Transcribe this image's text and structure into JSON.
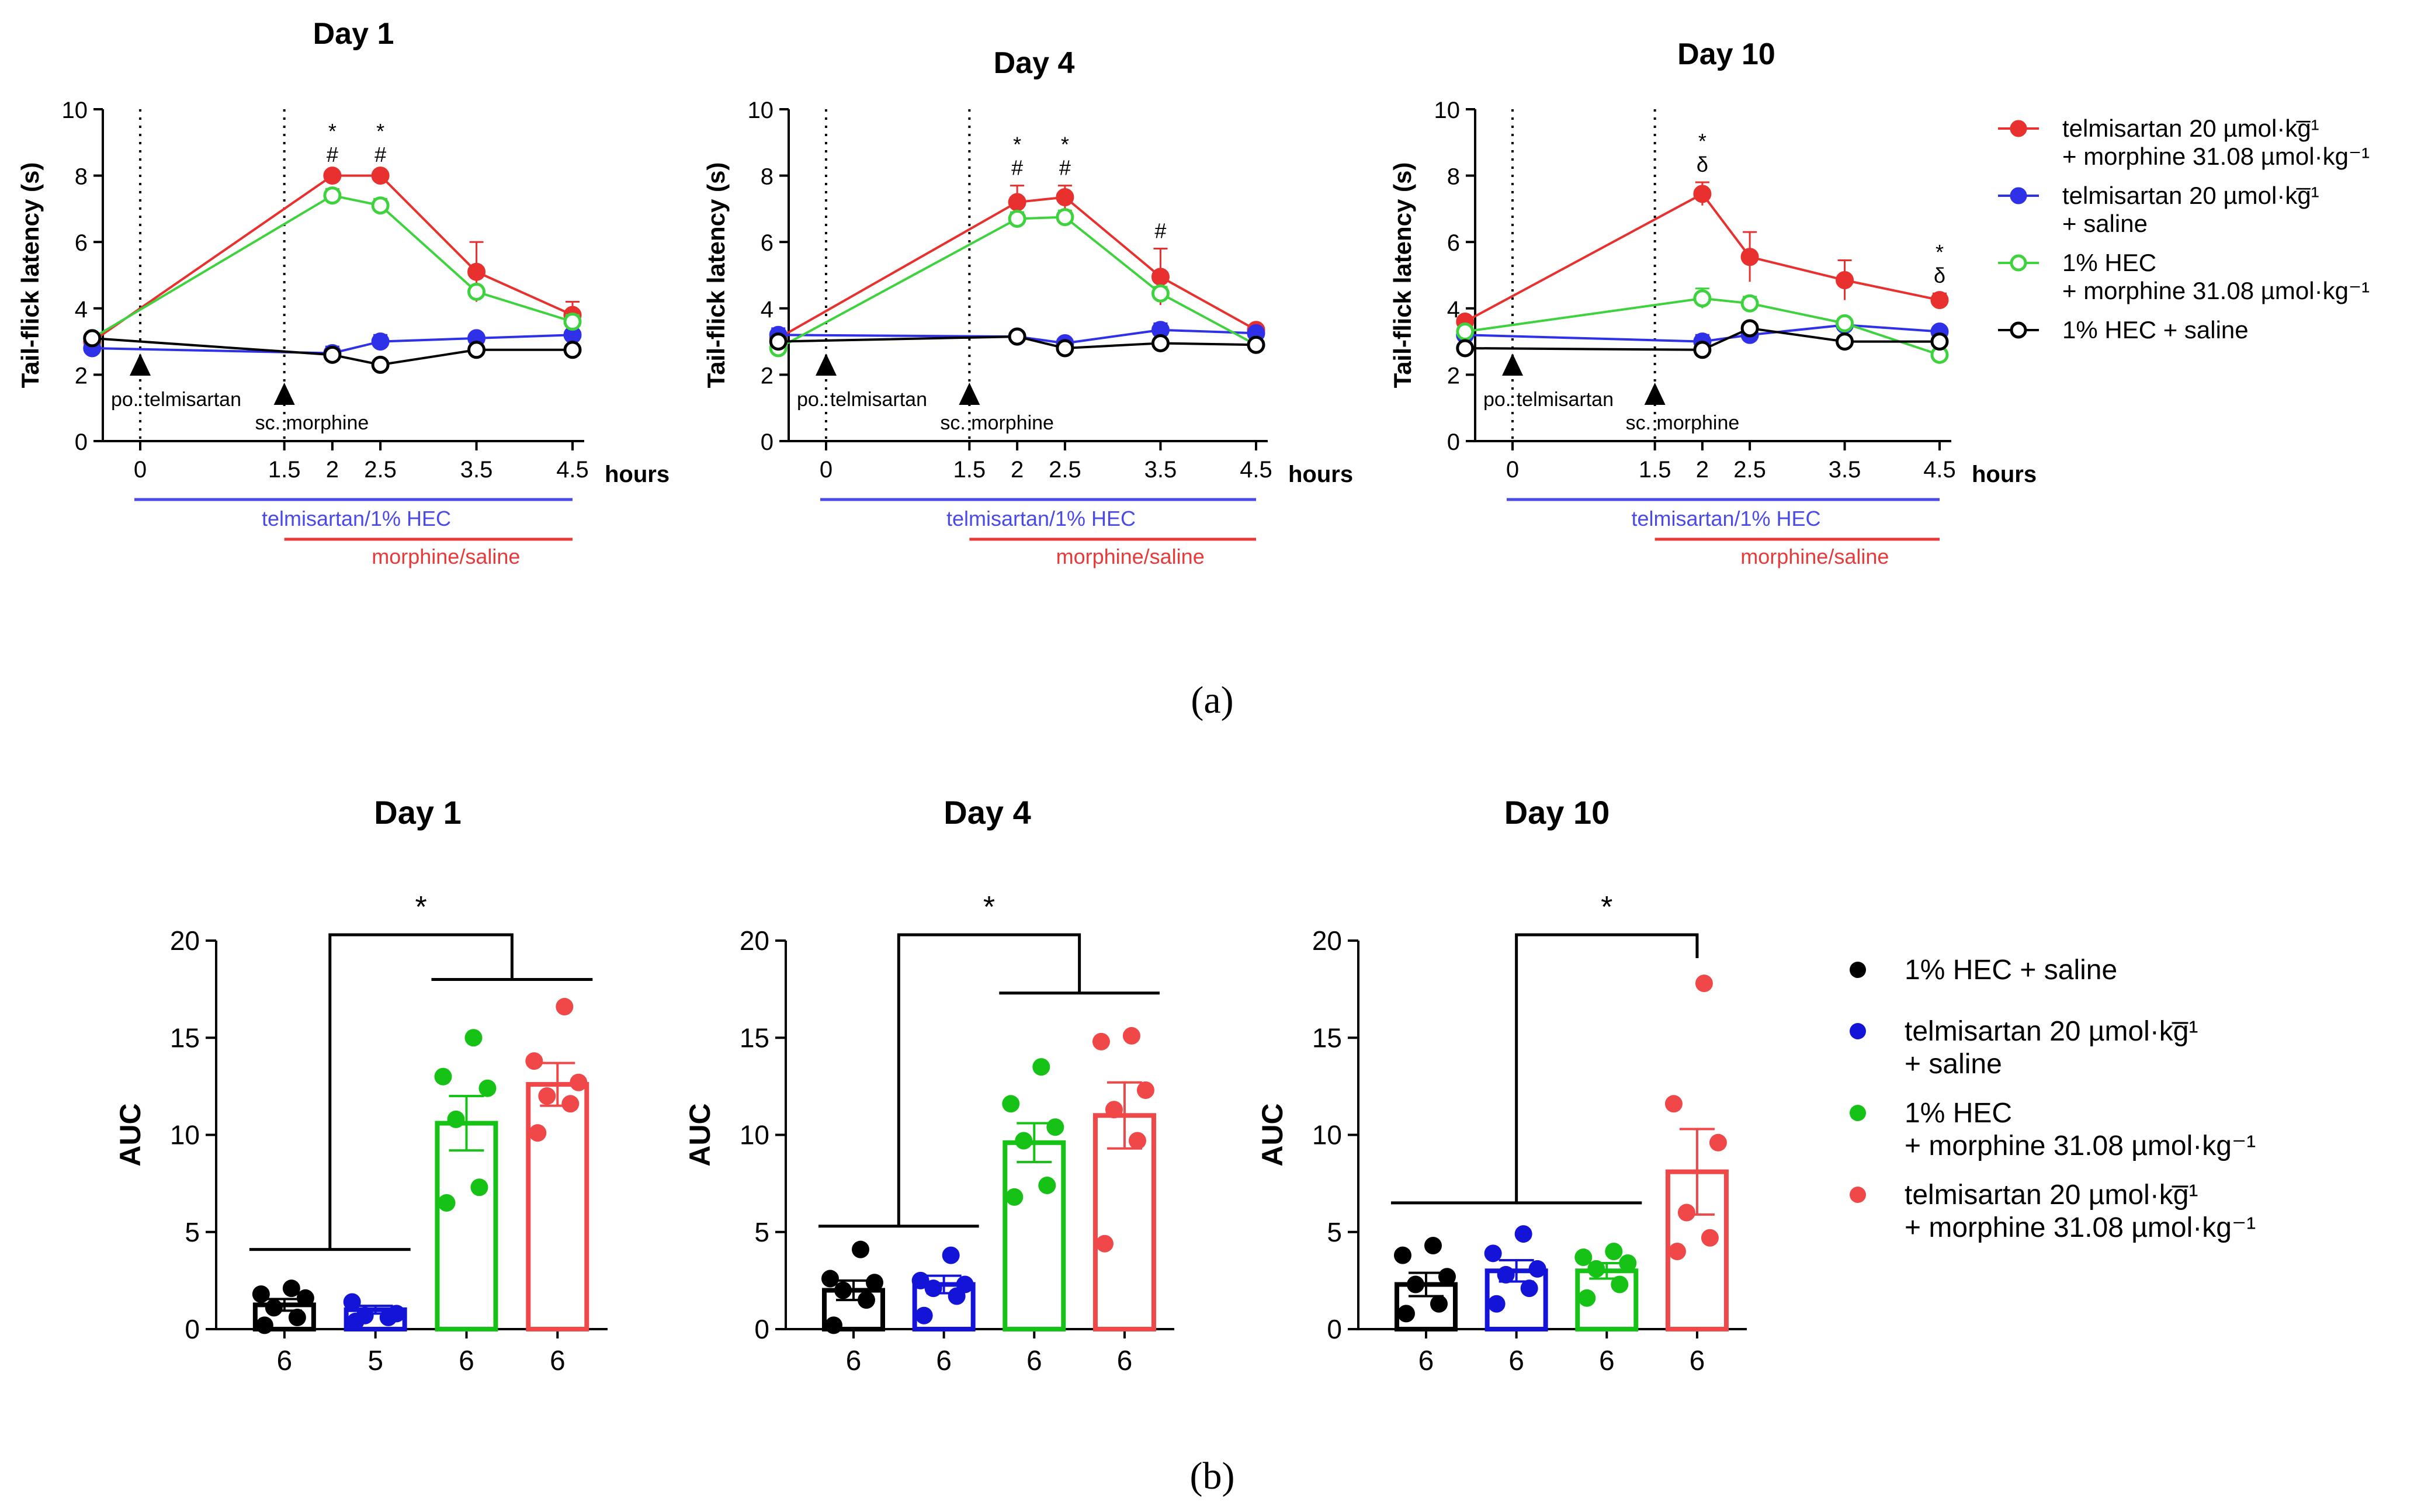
{
  "panel_labels": {
    "a": "(a)",
    "b": "(b)"
  },
  "series_meta": [
    {
      "key": "tel_morph",
      "label_lines": [
        "telmisartan 20 µmol·kg̅¹",
        "+ morphine 31.08 µmol·kg⁻¹"
      ],
      "color": "#e8302e",
      "filled": true
    },
    {
      "key": "tel_sal",
      "label_lines": [
        "telmisartan 20 µmol·kg̅¹",
        "+ saline"
      ],
      "color": "#2f31e8",
      "filled": true
    },
    {
      "key": "hec_morph",
      "label_lines": [
        "1% HEC",
        "+ morphine 31.08 µmol·kg⁻¹"
      ],
      "color": "#3fd23f",
      "filled": false
    },
    {
      "key": "hec_sal",
      "label_lines": [
        "1% HEC + saline"
      ],
      "color": "#000000",
      "filled": false
    }
  ],
  "bar_legend": [
    {
      "key": "hec_sal",
      "label_lines": [
        "1% HEC + saline"
      ],
      "color": "#000000"
    },
    {
      "key": "tel_sal",
      "label_lines": [
        "telmisartan 20 µmol·kg̅¹",
        "+ saline"
      ],
      "color": "#1414d8"
    },
    {
      "key": "hec_morph",
      "label_lines": [
        "1% HEC",
        "+ morphine 31.08 µmol·kg⁻¹"
      ],
      "color": "#16c216"
    },
    {
      "key": "tel_morph",
      "label_lines": [
        "telmisartan 20 µmol·kg̅¹",
        "+ morphine 31.08 µmol·kg⁻¹"
      ],
      "color": "#f04848"
    }
  ],
  "annotations": {
    "po": "po. telmisartan",
    "sc": "sc. morphine",
    "bar_blue": "telmisartan/1% HEC",
    "bar_red": "morphine/saline",
    "bar_blue_color": "#4a4ae8",
    "bar_red_color": "#e83a3a"
  },
  "chart_data": [
    {
      "type": "line",
      "title": "Day 1",
      "ylabel": "Tail-flick latency (s)",
      "xlabel": "hours",
      "ylim": [
        0,
        10
      ],
      "yticks": [
        0,
        2,
        4,
        6,
        8,
        10
      ],
      "xlim": [
        -0.5,
        4.6
      ],
      "xtick_values": [
        0,
        1.5,
        2,
        2.5,
        3.5,
        4.5
      ],
      "xtick_labels": [
        "0",
        "1.5",
        "2",
        "2.5",
        "3.5",
        "4.5"
      ],
      "series": [
        {
          "key": "tel_morph",
          "x": [
            -0.5,
            2,
            2.5,
            3.5,
            4.5
          ],
          "y": [
            3.0,
            8.0,
            8.0,
            5.1,
            3.8
          ],
          "err": [
            0.1,
            0.1,
            0.1,
            0.9,
            0.4
          ]
        },
        {
          "key": "tel_sal",
          "x": [
            -0.5,
            2,
            2.5,
            3.5,
            4.5
          ],
          "y": [
            2.8,
            2.65,
            3.0,
            3.1,
            3.2
          ],
          "err": [
            0.1,
            0.2,
            0.2,
            0.15,
            0.1
          ]
        },
        {
          "key": "hec_morph",
          "x": [
            -0.5,
            2,
            2.5,
            3.5,
            4.5
          ],
          "y": [
            3.1,
            7.4,
            7.1,
            4.5,
            3.6
          ],
          "err": [
            0.1,
            0.2,
            0.2,
            0.15,
            0.2
          ]
        },
        {
          "key": "hec_sal",
          "x": [
            -0.5,
            2,
            2.5,
            3.5,
            4.5
          ],
          "y": [
            3.1,
            2.6,
            2.3,
            2.75,
            2.75
          ],
          "err": [
            0.05,
            0.1,
            0.1,
            0.1,
            0.1
          ]
        }
      ],
      "sig_marks": [
        {
          "x": 2,
          "lines": [
            "*",
            "#"
          ]
        },
        {
          "x": 2.5,
          "lines": [
            "*",
            "#"
          ]
        }
      ]
    },
    {
      "type": "line",
      "title": "Day 4",
      "ylabel": "Tail-flick latency (s)",
      "xlabel": "hours",
      "ylim": [
        0,
        10
      ],
      "yticks": [
        0,
        2,
        4,
        6,
        8,
        10
      ],
      "xlim": [
        -0.5,
        4.6
      ],
      "xtick_values": [
        0,
        1.5,
        2,
        2.5,
        3.5,
        4.5
      ],
      "xtick_labels": [
        "0",
        "1.5",
        "2",
        "2.5",
        "3.5",
        "4.5"
      ],
      "series": [
        {
          "key": "tel_morph",
          "x": [
            -0.5,
            2,
            2.5,
            3.5,
            4.5
          ],
          "y": [
            3.1,
            7.2,
            7.35,
            4.95,
            3.35
          ],
          "err": [
            0.1,
            0.5,
            0.35,
            0.85,
            0.1
          ]
        },
        {
          "key": "tel_sal",
          "x": [
            -0.5,
            2,
            2.5,
            3.5,
            4.5
          ],
          "y": [
            3.2,
            3.15,
            2.95,
            3.35,
            3.25
          ],
          "err": [
            0.2,
            0.15,
            0.1,
            0.2,
            0.1
          ]
        },
        {
          "key": "hec_morph",
          "x": [
            -0.5,
            2,
            2.5,
            3.5,
            4.5
          ],
          "y": [
            2.8,
            6.7,
            6.75,
            4.45,
            2.9
          ],
          "err": [
            0.1,
            0.2,
            0.2,
            0.2,
            0.1
          ]
        },
        {
          "key": "hec_sal",
          "x": [
            -0.5,
            2,
            2.5,
            3.5,
            4.5
          ],
          "y": [
            3.0,
            3.15,
            2.8,
            2.95,
            2.9
          ],
          "err": [
            0.05,
            0.1,
            0.1,
            0.1,
            0.05
          ]
        }
      ],
      "sig_marks": [
        {
          "x": 2,
          "lines": [
            "*",
            "#"
          ]
        },
        {
          "x": 2.5,
          "lines": [
            "*",
            "#"
          ]
        },
        {
          "x": 3.5,
          "lines": [
            "#"
          ]
        }
      ]
    },
    {
      "type": "line",
      "title": "Day 10",
      "ylabel": "Tail-flick latency (s)",
      "xlabel": "hours",
      "ylim": [
        0,
        10
      ],
      "yticks": [
        0,
        2,
        4,
        6,
        8,
        10
      ],
      "xlim": [
        -0.5,
        4.6
      ],
      "xtick_values": [
        0,
        1.5,
        2,
        2.5,
        3.5,
        4.5
      ],
      "xtick_labels": [
        "0",
        "1.5",
        "2",
        "2.5",
        "3.5",
        "4.5"
      ],
      "series": [
        {
          "key": "tel_morph",
          "x": [
            -0.5,
            2,
            2.5,
            3.5,
            4.5
          ],
          "y": [
            3.6,
            7.45,
            5.55,
            4.85,
            4.25
          ],
          "err": [
            0.1,
            0.35,
            0.75,
            0.6,
            0.2
          ]
        },
        {
          "key": "tel_sal",
          "x": [
            -0.5,
            2,
            2.5,
            3.5,
            4.5
          ],
          "y": [
            3.2,
            3.0,
            3.2,
            3.5,
            3.3
          ],
          "err": [
            0.1,
            0.2,
            0.15,
            0.1,
            0.15
          ]
        },
        {
          "key": "hec_morph",
          "x": [
            -0.5,
            2,
            2.5,
            3.5,
            4.5
          ],
          "y": [
            3.3,
            4.3,
            4.15,
            3.55,
            2.6
          ],
          "err": [
            0.1,
            0.3,
            0.2,
            0.15,
            0.1
          ]
        },
        {
          "key": "hec_sal",
          "x": [
            -0.5,
            2,
            2.5,
            3.5,
            4.5
          ],
          "y": [
            2.8,
            2.75,
            3.4,
            3.0,
            3.0
          ],
          "err": [
            0.1,
            0.1,
            0.1,
            0.1,
            0.1
          ]
        }
      ],
      "sig_marks": [
        {
          "x": 2,
          "lines": [
            "*",
            "δ"
          ]
        },
        {
          "x": 4.5,
          "lines": [
            "*",
            "δ"
          ]
        }
      ]
    },
    {
      "type": "bar",
      "title": "Day 1",
      "ylabel": "AUC",
      "ylim": [
        0,
        20
      ],
      "yticks": [
        0,
        5,
        10,
        15,
        20
      ],
      "ytick_labels": [
        "0",
        "5",
        "10",
        "15",
        "20"
      ],
      "n_labels": [
        "6",
        "5",
        "6",
        "6"
      ],
      "bars": [
        {
          "key": "hec_sal",
          "mean": 1.25,
          "sem": 0.3,
          "points": [
            0.2,
            0.6,
            1.1,
            1.6,
            1.8,
            2.1
          ]
        },
        {
          "key": "tel_sal",
          "mean": 1.0,
          "sem": 0.2,
          "points": [
            0.4,
            0.6,
            0.7,
            0.8,
            1.4
          ]
        },
        {
          "key": "hec_morph",
          "mean": 10.6,
          "sem": 1.4,
          "points": [
            6.5,
            7.3,
            10.8,
            12.4,
            13.0,
            15.0
          ]
        },
        {
          "key": "tel_morph",
          "mean": 12.6,
          "sem": 1.1,
          "points": [
            10.1,
            11.6,
            12.0,
            12.7,
            13.8,
            16.6
          ]
        }
      ],
      "sig": {
        "star": "*",
        "left_bracket": [
          0,
          1
        ],
        "right_bracket": [
          2,
          3
        ],
        "left_y": 4.1,
        "right_y": 18.0,
        "top_y": 20.0
      }
    },
    {
      "type": "bar",
      "title": "Day 4",
      "ylabel": "AUC",
      "ylim": [
        0,
        20
      ],
      "yticks": [
        0,
        5,
        10,
        15,
        20
      ],
      "ytick_labels": [
        "0",
        "5",
        "10",
        "15",
        "20"
      ],
      "n_labels": [
        "6",
        "6",
        "6",
        "6"
      ],
      "bars": [
        {
          "key": "hec_sal",
          "mean": 2.0,
          "sem": 0.5,
          "points": [
            0.2,
            1.5,
            2.0,
            2.4,
            2.6,
            4.1
          ]
        },
        {
          "key": "tel_sal",
          "mean": 2.3,
          "sem": 0.45,
          "points": [
            0.7,
            1.7,
            2.1,
            2.3,
            2.5,
            3.8
          ]
        },
        {
          "key": "hec_morph",
          "mean": 9.6,
          "sem": 1.0,
          "points": [
            6.8,
            7.4,
            9.7,
            10.4,
            11.6,
            13.5
          ]
        },
        {
          "key": "tel_morph",
          "mean": 11.0,
          "sem": 1.7,
          "points": [
            4.4,
            9.7,
            11.3,
            12.3,
            14.8,
            15.1
          ]
        }
      ],
      "sig": {
        "star": "*",
        "left_bracket": [
          0,
          1
        ],
        "right_bracket": [
          2,
          3
        ],
        "left_y": 5.3,
        "right_y": 17.3,
        "top_y": 20.0
      }
    },
    {
      "type": "bar",
      "title": "Day 10",
      "ylabel": "AUC",
      "ylim": [
        0,
        20
      ],
      "yticks": [
        0,
        5,
        10,
        15,
        20
      ],
      "ytick_labels": [
        "0",
        "5",
        "10",
        "15",
        "20"
      ],
      "n_labels": [
        "6",
        "6",
        "6",
        "6"
      ],
      "bars": [
        {
          "key": "hec_sal",
          "mean": 2.3,
          "sem": 0.6,
          "points": [
            0.8,
            1.3,
            2.3,
            2.7,
            3.8,
            4.3
          ]
        },
        {
          "key": "tel_sal",
          "mean": 3.0,
          "sem": 0.55,
          "points": [
            1.3,
            2.1,
            2.8,
            3.1,
            3.9,
            4.9
          ]
        },
        {
          "key": "hec_morph",
          "mean": 3.0,
          "sem": 0.4,
          "points": [
            1.6,
            2.3,
            3.1,
            3.4,
            3.7,
            4.0
          ]
        },
        {
          "key": "tel_morph",
          "mean": 8.1,
          "sem": 2.2,
          "points": [
            4.0,
            4.7,
            6.0,
            9.6,
            11.6,
            17.8
          ]
        }
      ],
      "sig": {
        "star": "*",
        "left_bracket": [
          0,
          2
        ],
        "right_bracket": [
          3,
          3
        ],
        "left_y": 6.5,
        "right_y": 20.0,
        "top_y": 20.0
      }
    }
  ]
}
